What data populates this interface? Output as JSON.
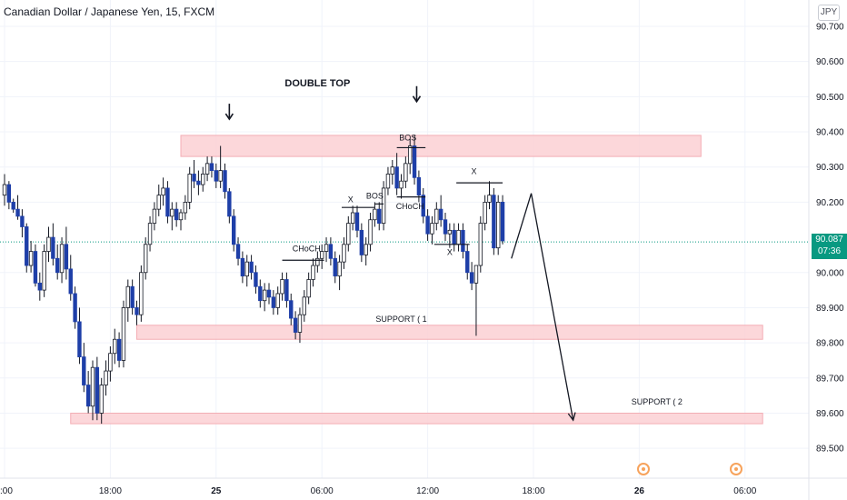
{
  "header": {
    "symbol_title": "Canadian Dollar / Japanese Yen, 15, FXCM",
    "currency_badge": "JPY"
  },
  "price_tag": {
    "price": "90.087",
    "countdown": "07:36"
  },
  "colors": {
    "bull": "#ffffff",
    "bear": "#1e3fa8",
    "wick": "#131722",
    "zone_fill": "#fcd3d7",
    "zone_border": "#f3a6ad",
    "price_line": "#089981",
    "event": "#f7a35c"
  },
  "chart_data": {
    "type": "candlestick",
    "y_axis": {
      "min": 89.4,
      "max": 90.75,
      "ticks": [
        "90.700",
        "90.600",
        "90.500",
        "90.400",
        "90.300",
        "90.200",
        "90.000",
        "89.900",
        "89.800",
        "89.700",
        "89.600",
        "89.500"
      ],
      "tick_values": [
        90.7,
        90.6,
        90.5,
        90.4,
        90.3,
        90.2,
        90.0,
        89.9,
        89.8,
        89.7,
        89.6,
        89.5
      ]
    },
    "x_axis": {
      "labels": [
        ":00",
        "18:00",
        "25",
        "06:00",
        "12:00",
        "18:00",
        "26",
        "06:00"
      ],
      "label_bars": [
        0,
        24,
        48,
        72,
        96,
        120,
        144,
        168
      ],
      "total_bars": 190,
      "future_from_bar": 117
    },
    "last_price": 90.087,
    "zones": [
      {
        "from_bar": 40,
        "to_bar": 158,
        "low": 90.33,
        "high": 90.39
      },
      {
        "from_bar": 30,
        "to_bar": 172,
        "low": 89.81,
        "high": 89.85
      },
      {
        "from_bar": 15,
        "to_bar": 172,
        "low": 89.57,
        "high": 89.6
      }
    ],
    "annotations": [
      {
        "text": "DOUBLE TOP",
        "bar": 71,
        "price": 90.53,
        "bold": true
      },
      {
        "text": "BOS",
        "bar": 91.5,
        "price": 90.375
      },
      {
        "text": "X",
        "bar": 78.5,
        "price": 90.2
      },
      {
        "text": "BOS",
        "bar": 84,
        "price": 90.21
      },
      {
        "text": "CHoCH",
        "bar": 92,
        "price": 90.18
      },
      {
        "text": "CHoCH",
        "bar": 68.5,
        "price": 90.06
      },
      {
        "text": "X",
        "bar": 106.5,
        "price": 90.28
      },
      {
        "text": "X",
        "bar": 101,
        "price": 90.05
      },
      {
        "text": "SUPPORT ( 1",
        "bar": 90,
        "price": 89.86
      },
      {
        "text": "SUPPORT ( 2",
        "bar": 148,
        "price": 89.625
      }
    ],
    "level_lines": [
      {
        "from_bar": 63,
        "to_bar": 72.5,
        "price": 90.035
      },
      {
        "from_bar": 76.5,
        "to_bar": 84,
        "price": 90.185
      },
      {
        "from_bar": 84,
        "to_bar": 86,
        "price": 90.195
      },
      {
        "from_bar": 89,
        "to_bar": 95.5,
        "price": 90.355
      },
      {
        "from_bar": 89,
        "to_bar": 95.5,
        "price": 90.215
      },
      {
        "from_bar": 102.5,
        "to_bar": 113,
        "price": 90.255
      },
      {
        "from_bar": 97.5,
        "to_bar": 105.5,
        "price": 90.08
      }
    ],
    "down_arrows": [
      {
        "bar": 51,
        "price": 90.48
      },
      {
        "bar": 93.5,
        "price": 90.53
      }
    ],
    "projection": [
      {
        "bar": 115,
        "price": 90.04
      },
      {
        "bar": 119.5,
        "price": 90.225
      },
      {
        "bar": 129,
        "price": 89.58
      }
    ],
    "event_markers": [
      145,
      166
    ],
    "candles": [
      [
        90.22,
        90.28,
        90.19,
        90.25
      ],
      [
        90.25,
        90.26,
        90.18,
        90.2
      ],
      [
        90.2,
        90.21,
        90.17,
        90.18
      ],
      [
        90.18,
        90.22,
        90.15,
        90.16
      ],
      [
        90.16,
        90.18,
        90.1,
        90.13
      ],
      [
        90.13,
        90.14,
        90.0,
        90.02
      ],
      [
        90.02,
        90.09,
        90.0,
        90.06
      ],
      [
        90.06,
        90.08,
        89.96,
        89.97
      ],
      [
        89.97,
        90.0,
        89.92,
        89.95
      ],
      [
        89.95,
        90.08,
        89.93,
        90.06
      ],
      [
        90.06,
        90.13,
        90.03,
        90.1
      ],
      [
        90.1,
        90.14,
        90.02,
        90.04
      ],
      [
        90.04,
        90.08,
        89.98,
        90.0
      ],
      [
        90.0,
        90.1,
        89.97,
        90.08
      ],
      [
        90.08,
        90.13,
        89.98,
        90.01
      ],
      [
        90.01,
        90.05,
        89.92,
        89.94
      ],
      [
        89.94,
        89.96,
        89.84,
        89.86
      ],
      [
        89.86,
        89.9,
        89.74,
        89.76
      ],
      [
        89.76,
        89.8,
        89.66,
        89.68
      ],
      [
        89.68,
        89.72,
        89.6,
        89.62
      ],
      [
        89.62,
        89.75,
        89.58,
        89.73
      ],
      [
        89.73,
        89.76,
        89.58,
        89.6
      ],
      [
        89.6,
        89.7,
        89.57,
        89.68
      ],
      [
        89.68,
        89.75,
        89.65,
        89.72
      ],
      [
        89.72,
        89.79,
        89.69,
        89.77
      ],
      [
        89.77,
        89.84,
        89.74,
        89.81
      ],
      [
        89.81,
        89.83,
        89.73,
        89.75
      ],
      [
        89.75,
        89.92,
        89.73,
        89.9
      ],
      [
        89.9,
        89.98,
        89.86,
        89.96
      ],
      [
        89.96,
        89.98,
        89.88,
        89.9
      ],
      [
        89.9,
        89.92,
        89.85,
        89.88
      ],
      [
        89.88,
        90.02,
        89.86,
        90.0
      ],
      [
        90.0,
        90.1,
        89.98,
        90.08
      ],
      [
        90.08,
        90.16,
        90.06,
        90.14
      ],
      [
        90.14,
        90.2,
        90.12,
        90.18
      ],
      [
        90.18,
        90.25,
        90.16,
        90.22
      ],
      [
        90.22,
        90.27,
        90.19,
        90.24
      ],
      [
        90.24,
        90.26,
        90.14,
        90.16
      ],
      [
        90.16,
        90.2,
        90.12,
        90.18
      ],
      [
        90.18,
        90.2,
        90.13,
        90.15
      ],
      [
        90.15,
        90.18,
        90.12,
        90.17
      ],
      [
        90.17,
        90.22,
        90.15,
        90.2
      ],
      [
        90.2,
        90.3,
        90.18,
        90.28
      ],
      [
        90.28,
        90.32,
        90.24,
        90.26
      ],
      [
        90.26,
        90.29,
        90.22,
        90.25
      ],
      [
        90.25,
        90.3,
        90.23,
        90.28
      ],
      [
        90.28,
        90.33,
        90.26,
        90.31
      ],
      [
        90.31,
        90.33,
        90.27,
        90.29
      ],
      [
        90.29,
        90.31,
        90.24,
        90.26
      ],
      [
        90.26,
        90.36,
        90.24,
        90.29
      ],
      [
        90.29,
        90.31,
        90.21,
        90.23
      ],
      [
        90.23,
        90.24,
        90.14,
        90.16
      ],
      [
        90.16,
        90.18,
        90.06,
        90.08
      ],
      [
        90.08,
        90.1,
        90.02,
        90.04
      ],
      [
        90.04,
        90.06,
        89.97,
        89.99
      ],
      [
        89.99,
        90.05,
        89.96,
        90.03
      ],
      [
        90.03,
        90.05,
        89.98,
        90.0
      ],
      [
        90.0,
        90.02,
        89.94,
        89.96
      ],
      [
        89.96,
        89.98,
        89.9,
        89.92
      ],
      [
        89.92,
        89.97,
        89.89,
        89.95
      ],
      [
        89.95,
        89.97,
        89.91,
        89.93
      ],
      [
        89.93,
        89.95,
        89.88,
        89.9
      ],
      [
        89.9,
        89.96,
        89.88,
        89.94
      ],
      [
        89.94,
        90.0,
        89.92,
        89.98
      ],
      [
        89.98,
        90.0,
        89.9,
        89.92
      ],
      [
        89.92,
        89.94,
        89.85,
        89.87
      ],
      [
        89.87,
        89.89,
        89.81,
        89.83
      ],
      [
        89.83,
        89.9,
        89.8,
        89.88
      ],
      [
        89.88,
        89.95,
        89.86,
        89.93
      ],
      [
        89.93,
        90.0,
        89.91,
        89.98
      ],
      [
        89.98,
        90.04,
        89.96,
        90.02
      ],
      [
        90.02,
        90.06,
        90.0,
        90.04
      ],
      [
        90.04,
        90.08,
        90.01,
        90.06
      ],
      [
        90.06,
        90.1,
        90.03,
        90.08
      ],
      [
        90.08,
        90.1,
        90.02,
        90.04
      ],
      [
        90.04,
        90.06,
        89.97,
        89.99
      ],
      [
        89.99,
        90.05,
        89.95,
        90.03
      ],
      [
        90.03,
        90.1,
        90.01,
        90.08
      ],
      [
        90.08,
        90.16,
        90.06,
        90.14
      ],
      [
        90.14,
        90.19,
        90.12,
        90.17
      ],
      [
        90.17,
        90.19,
        90.1,
        90.12
      ],
      [
        90.12,
        90.14,
        90.03,
        90.05
      ],
      [
        90.05,
        90.1,
        90.02,
        90.08
      ],
      [
        90.08,
        90.17,
        90.06,
        90.15
      ],
      [
        90.15,
        90.2,
        90.13,
        90.18
      ],
      [
        90.18,
        90.2,
        90.12,
        90.14
      ],
      [
        90.14,
        90.26,
        90.12,
        90.24
      ],
      [
        90.24,
        90.3,
        90.22,
        90.28
      ],
      [
        90.28,
        90.32,
        90.25,
        90.3
      ],
      [
        90.3,
        90.34,
        90.22,
        90.24
      ],
      [
        90.24,
        90.28,
        90.21,
        90.26
      ],
      [
        90.26,
        90.33,
        90.24,
        90.31
      ],
      [
        90.31,
        90.38,
        90.28,
        90.36
      ],
      [
        90.36,
        90.39,
        90.25,
        90.27
      ],
      [
        90.27,
        90.29,
        90.2,
        90.22
      ],
      [
        90.22,
        90.24,
        90.14,
        90.16
      ],
      [
        90.16,
        90.18,
        90.09,
        90.11
      ],
      [
        90.11,
        90.16,
        90.08,
        90.14
      ],
      [
        90.14,
        90.2,
        90.12,
        90.18
      ],
      [
        90.18,
        90.22,
        90.13,
        90.15
      ],
      [
        90.15,
        90.17,
        90.09,
        90.11
      ],
      [
        90.11,
        90.14,
        90.07,
        90.12
      ],
      [
        90.12,
        90.14,
        90.06,
        90.08
      ],
      [
        90.08,
        90.14,
        90.06,
        90.12
      ],
      [
        90.12,
        90.14,
        90.04,
        90.06
      ],
      [
        90.06,
        90.08,
        89.98,
        90.0
      ],
      [
        90.0,
        90.03,
        89.95,
        89.97
      ],
      [
        89.97,
        90.02,
        89.82,
        90.02
      ],
      [
        90.02,
        90.16,
        90.0,
        90.14
      ],
      [
        90.14,
        90.22,
        90.12,
        90.2
      ],
      [
        90.2,
        90.26,
        90.18,
        90.22
      ],
      [
        90.22,
        90.24,
        90.05,
        90.07
      ],
      [
        90.07,
        90.22,
        90.05,
        90.2
      ],
      [
        90.2,
        90.22,
        90.08,
        90.09
      ]
    ]
  }
}
